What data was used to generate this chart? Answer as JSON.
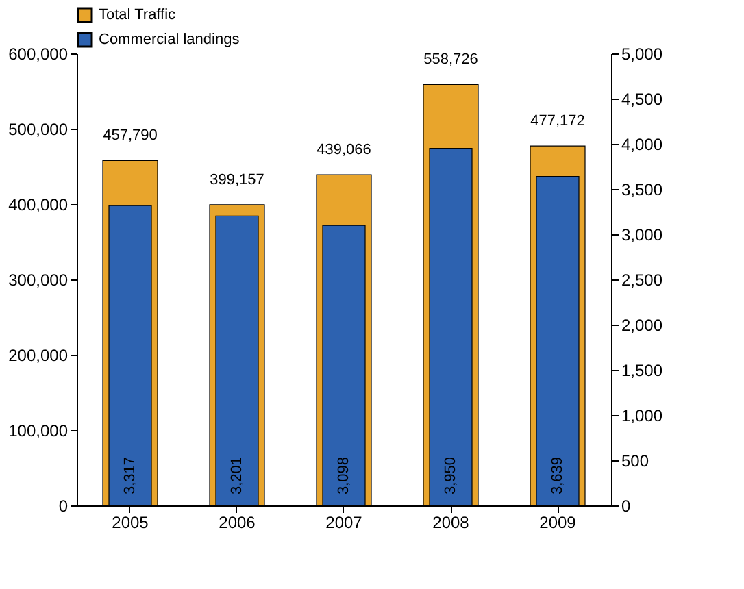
{
  "chart_data": {
    "type": "bar",
    "categories": [
      "2005",
      "2006",
      "2007",
      "2008",
      "2009"
    ],
    "series": [
      {
        "name": "Total Traffic",
        "color": "#e8a52c",
        "values": [
          457790,
          399157,
          439066,
          558726,
          477172
        ],
        "value_labels": [
          "457,790",
          "399,157",
          "439,066",
          "558,726",
          "477,172"
        ]
      },
      {
        "name": "Commercial landings",
        "color": "#2d62b0",
        "axis": "y2",
        "values": [
          3317,
          3201,
          3098,
          3950,
          3639
        ],
        "value_labels": [
          "3,317",
          "3,201",
          "3,098",
          "3,950",
          "3,639"
        ]
      }
    ],
    "ylim": [
      0,
      600000
    ],
    "yticks": [
      0,
      {
        "value": 100000,
        "label": "100,000"
      },
      {
        "value": 200000,
        "label": "200,000"
      },
      {
        "value": 300000,
        "label": "300,000"
      },
      {
        "value": 400000,
        "label": "400,000"
      },
      {
        "value": 500000,
        "label": "500,000"
      },
      {
        "value": 600000,
        "label": "600,000"
      }
    ],
    "y2lim": [
      0,
      5000
    ],
    "y2ticks": [
      0,
      500,
      {
        "value": 1000,
        "label": "1,000"
      },
      {
        "value": 1500,
        "label": "1,500"
      },
      {
        "value": 2000,
        "label": "2,000"
      },
      {
        "value": 2500,
        "label": "2,500"
      },
      {
        "value": 3000,
        "label": "3,000"
      },
      {
        "value": 3500,
        "label": "3,500"
      },
      {
        "value": 4000,
        "label": "4,000"
      },
      {
        "value": 4500,
        "label": "4,500"
      },
      {
        "value": 5000,
        "label": "5,000"
      }
    ],
    "grid": false,
    "legend": "top left"
  }
}
